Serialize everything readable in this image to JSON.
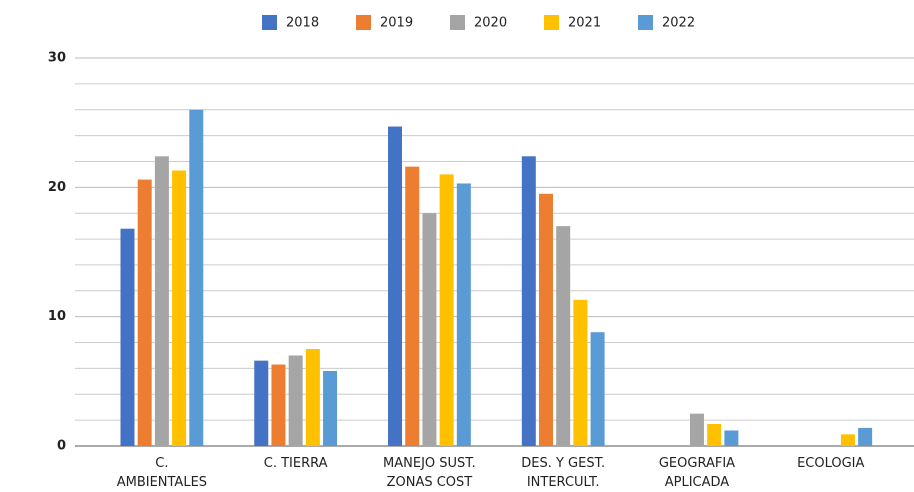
{
  "chart_data": {
    "type": "bar",
    "categories": [
      "C.\nAMBIENTALES",
      "C. TIERRA",
      "MANEJO SUST.\nZONAS COST",
      "DES. Y GEST.\nINTERCULT.",
      "GEOGRAFIA\nAPLICADA",
      "ECOLOGIA"
    ],
    "series": [
      {
        "name": "2018",
        "color": "#4472c4",
        "values": [
          16.8,
          6.6,
          24.7,
          22.4,
          null,
          null
        ]
      },
      {
        "name": "2019",
        "color": "#ed7d31",
        "values": [
          20.6,
          6.3,
          21.6,
          19.5,
          null,
          null
        ]
      },
      {
        "name": "2020",
        "color": "#a5a5a5",
        "values": [
          22.4,
          7.0,
          18.0,
          17.0,
          2.5,
          null
        ]
      },
      {
        "name": "2021",
        "color": "#ffc000",
        "values": [
          21.3,
          7.5,
          21.0,
          11.3,
          1.7,
          0.9
        ]
      },
      {
        "name": "2022",
        "color": "#5b9bd5",
        "values": [
          26.0,
          5.8,
          20.3,
          8.8,
          1.2,
          1.4
        ]
      }
    ],
    "ylim": [
      0,
      30
    ],
    "yticks": [
      0,
      10,
      20,
      30
    ],
    "minor_yticks": [
      2,
      4,
      6,
      8,
      12,
      14,
      16,
      18,
      22,
      24,
      26,
      28
    ],
    "grid": true,
    "legend": "top"
  }
}
